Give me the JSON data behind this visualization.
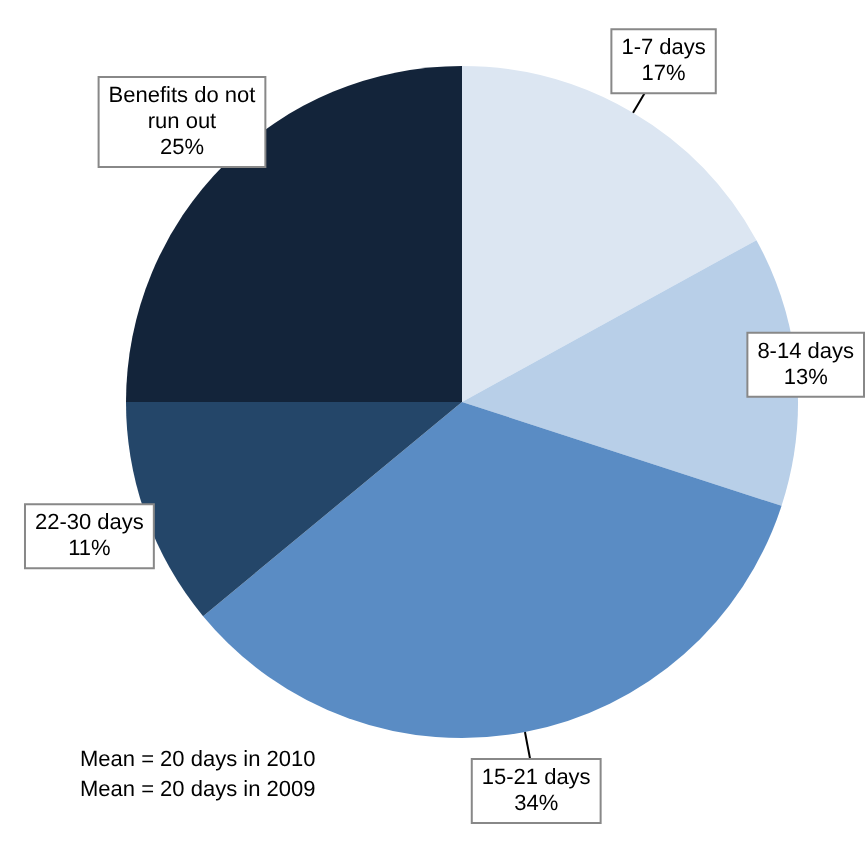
{
  "chart_data": {
    "type": "pie",
    "categories": [
      "1-7 days",
      "8-14 days",
      "15-21 days",
      "22-30 days",
      "Benefits do not run out"
    ],
    "values": [
      17,
      13,
      34,
      11,
      25
    ],
    "colors": [
      "#dce6f2",
      "#b8cfe8",
      "#5a8cc4",
      "#244669",
      "#13243a"
    ],
    "value_labels": [
      "17%",
      "13%",
      "34%",
      "11%",
      "25%"
    ],
    "legend": false,
    "annotations": [
      "Mean = 20 days in 2010",
      "Mean = 20 days in 2009"
    ]
  }
}
